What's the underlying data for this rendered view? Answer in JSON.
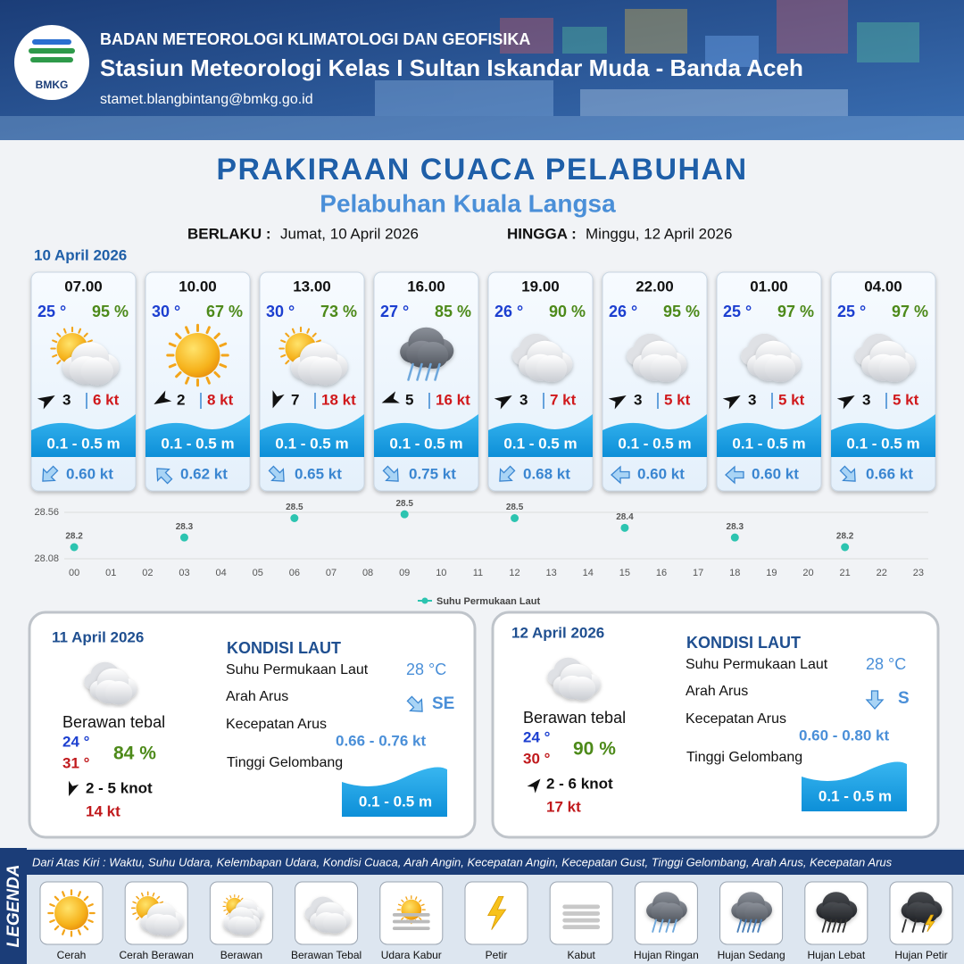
{
  "header": {
    "logo": "BMKG",
    "organization": "BADAN METEOROLOGI KLIMATOLOGI DAN GEOFISIKA",
    "station": "Stasiun Meteorologi Kelas I Sultan Iskandar Muda - Banda Aceh",
    "email": "stamet.blangbintang@bmkg.go.id"
  },
  "title": "PRAKIRAAN CUACA PELABUHAN",
  "subtitle": "Pelabuhan Kuala Langsa",
  "validity": {
    "from_label": "BERLAKU :",
    "from": "Jumat, 10 April 2026",
    "to_label": "HINGGA :",
    "to": "Minggu, 12 April 2026"
  },
  "day1": {
    "date": "10 April 2026",
    "slots": [
      {
        "time": "07.00",
        "temperature": "25 °",
        "humidity": "95 %",
        "wind": "3",
        "gust": "6 kt",
        "wave": "0.1 - 0.5 m",
        "current": "0.60 kt"
      },
      {
        "time": "10.00",
        "temperature": "30 °",
        "humidity": "67 %",
        "wind": "2",
        "gust": "8 kt",
        "wave": "0.1 - 0.5 m",
        "current": "0.62 kt"
      },
      {
        "time": "13.00",
        "temperature": "30 °",
        "humidity": "73 %",
        "wind": "7",
        "gust": "18 kt",
        "wave": "0.1 - 0.5 m",
        "current": "0.65 kt"
      },
      {
        "time": "16.00",
        "temperature": "27 °",
        "humidity": "85 %",
        "wind": "5",
        "gust": "16 kt",
        "wave": "0.1 - 0.5 m",
        "current": "0.75 kt"
      },
      {
        "time": "19.00",
        "temperature": "26 °",
        "humidity": "90 %",
        "wind": "3",
        "gust": "7 kt",
        "wave": "0.1 - 0.5 m",
        "current": "0.68 kt"
      },
      {
        "time": "22.00",
        "temperature": "26 °",
        "humidity": "95 %",
        "wind": "3",
        "gust": "5 kt",
        "wave": "0.1 - 0.5 m",
        "current": "0.60 kt"
      },
      {
        "time": "01.00",
        "temperature": "25 °",
        "humidity": "97 %",
        "wind": "3",
        "gust": "5 kt",
        "wave": "0.1 - 0.5 m",
        "current": "0.60 kt"
      },
      {
        "time": "04.00",
        "temperature": "25 °",
        "humidity": "97 %",
        "wind": "3",
        "gust": "5 kt",
        "wave": "0.1 - 0.5 m",
        "current": "0.66 kt"
      }
    ]
  },
  "chart_data": {
    "type": "scatter",
    "x": [
      0,
      3,
      6,
      9,
      12,
      15,
      18,
      21
    ],
    "series": [
      {
        "name": "Suhu Permukaan Laut",
        "color": "#2cc4b0",
        "values": [
          28.2,
          28.3,
          28.5,
          28.54,
          28.5,
          28.4,
          28.3,
          28.2
        ],
        "value_labels": [
          "28.2",
          "28.3",
          "28.5",
          "28.5",
          "28.5",
          "28.4",
          "28.3",
          "28.2"
        ]
      }
    ],
    "xlim": [
      -0.27,
      23.27
    ],
    "ylim": [
      28.08,
      28.56
    ],
    "yticks": [
      28.08,
      28.56
    ],
    "xticks": [
      {
        "value": 0,
        "label": "00"
      },
      {
        "value": 1,
        "label": "01"
      },
      {
        "value": 2,
        "label": "02"
      },
      {
        "value": 3,
        "label": "03"
      },
      {
        "value": 4,
        "label": "04"
      },
      {
        "value": 5,
        "label": "05"
      },
      {
        "value": 6,
        "label": "06"
      },
      {
        "value": 7,
        "label": "07"
      },
      {
        "value": 8,
        "label": "08"
      },
      {
        "value": 9,
        "label": "09"
      },
      {
        "value": 10,
        "label": "10"
      },
      {
        "value": 11,
        "label": "11"
      },
      {
        "value": 12,
        "label": "12"
      },
      {
        "value": 13,
        "label": "13"
      },
      {
        "value": 14,
        "label": "14"
      },
      {
        "value": 15,
        "label": "15"
      },
      {
        "value": 16,
        "label": "16"
      },
      {
        "value": 17,
        "label": "17"
      },
      {
        "value": 18,
        "label": "18"
      },
      {
        "value": 19,
        "label": "19"
      },
      {
        "value": 20,
        "label": "20"
      },
      {
        "value": 21,
        "label": "21"
      },
      {
        "value": 22,
        "label": "22"
      },
      {
        "value": 23,
        "label": "23"
      }
    ],
    "grid": true,
    "legend": "bottom"
  },
  "days": [
    {
      "date": "11 April 2026",
      "condition": "Berawan tebal",
      "temp_min": "24 °",
      "temp_max": "31 °",
      "humidity": "84 %",
      "wind": "2  - 5 knot",
      "gust": "14 kt",
      "sea_title": "KONDISI LAUT",
      "sst_label": "Suhu Permukaan Laut",
      "sst": "28 °C",
      "direction_label": "Arah Arus",
      "direction": "SE",
      "speed_label": "Kecepatan Arus",
      "speed": "0.66  - 0.76 kt",
      "wave_label": "Tinggi Gelombang",
      "wave": "0.1 - 0.5 m"
    },
    {
      "date": "12 April 2026",
      "condition": "Berawan tebal",
      "temp_min": "24 °",
      "temp_max": "30 °",
      "humidity": "90 %",
      "wind": "2  - 6 knot",
      "gust": "17 kt",
      "sea_title": "KONDISI LAUT",
      "sst_label": "Suhu Permukaan Laut",
      "sst": "28 °C",
      "direction_label": "Arah Arus",
      "direction": "S",
      "speed_label": "Kecepatan Arus",
      "speed": "0.60  - 0.80 kt",
      "wave_label": "Tinggi Gelombang",
      "wave": "0.1 - 0.5 m"
    }
  ],
  "legend": {
    "title": "LEGENDA",
    "description": "Dari Atas Kiri : Waktu, Suhu Udara, Kelembapan Udara, Kondisi Cuaca, Arah Angin, Kecepatan Angin, Kecepatan Gust, Tinggi Gelombang, Arah Arus, Kecepatan Arus",
    "items": [
      "Cerah",
      "Cerah Berawan",
      "Berawan",
      "Berawan Tebal",
      "Udara Kabur",
      "Petir",
      "Kabut",
      "Hujan Ringan",
      "Hujan Sedang",
      "Hujan Lebat",
      "Hujan Petir"
    ]
  }
}
